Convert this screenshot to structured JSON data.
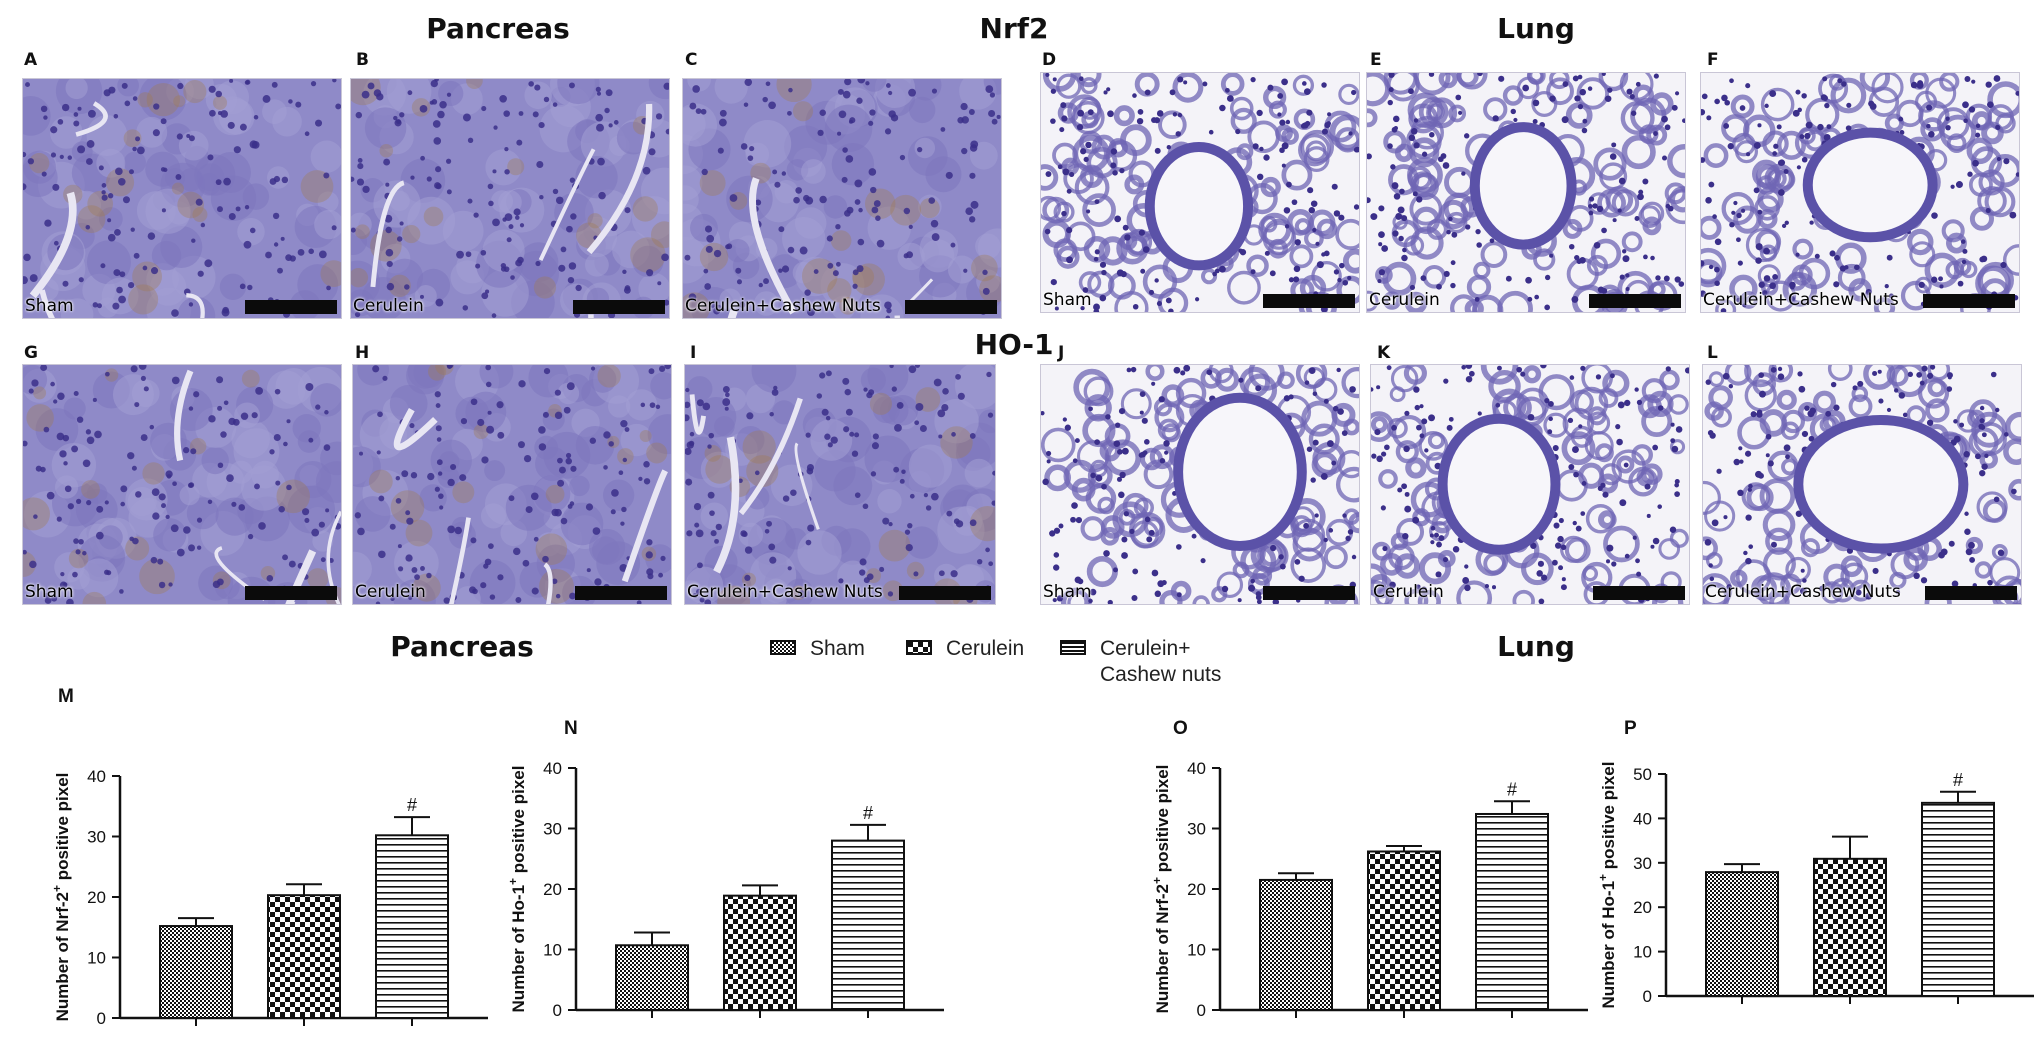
{
  "titles": {
    "pancreas_top": "Pancreas",
    "nrf2": "Nrf2",
    "lung_top": "Lung",
    "ho1": "HO-1",
    "pancreas_bottom": "Pancreas",
    "lung_bottom": "Lung"
  },
  "panels": [
    {
      "letter": "A",
      "tissue": "pancreas",
      "label": "Sham"
    },
    {
      "letter": "B",
      "tissue": "pancreas",
      "label": "Cerulein"
    },
    {
      "letter": "C",
      "tissue": "pancreas",
      "label": "Cerulein+Cashew Nuts"
    },
    {
      "letter": "D",
      "tissue": "lung",
      "label": "Sham"
    },
    {
      "letter": "E",
      "tissue": "lung",
      "label": "Cerulein"
    },
    {
      "letter": "F",
      "tissue": "lung",
      "label": "Cerulein+Cashew Nuts"
    },
    {
      "letter": "G",
      "tissue": "pancreas",
      "label": "Sham"
    },
    {
      "letter": "H",
      "tissue": "pancreas",
      "label": "Cerulein"
    },
    {
      "letter": "I",
      "tissue": "pancreas",
      "label": "Cerulein+Cashew Nuts"
    },
    {
      "letter": "J",
      "tissue": "lung",
      "label": "Sham"
    },
    {
      "letter": "K",
      "tissue": "lung",
      "label": "Cerulein"
    },
    {
      "letter": "L",
      "tissue": "lung",
      "label": "Cerulein+Cashew Nuts"
    }
  ],
  "legend": {
    "items": [
      {
        "label": "Sham",
        "pattern": "dense-check"
      },
      {
        "label": "Cerulein",
        "pattern": "checkerboard"
      },
      {
        "label": "Cerulein+\nCashew nuts",
        "pattern": "horizontal-lines"
      }
    ]
  },
  "colors": {
    "stain_blue": "#7a72c0",
    "nucleus": "#3b2f8a",
    "brown_stain": "#a07a50",
    "bar_outline": "#111111"
  },
  "chart_data": [
    {
      "panel": "M",
      "type": "bar",
      "categories": [
        "Sham",
        "Cerulein",
        "Cerulein+Cashew nuts"
      ],
      "values": [
        15.2,
        20.3,
        30.2
      ],
      "errors": [
        1.3,
        1.8,
        3.0
      ],
      "significance": [
        "",
        "",
        "#"
      ],
      "ylabel": "Number of Nrf-2+ positive pixel",
      "ylabel_parts": [
        "Number of Nrf-2",
        "+",
        " positive pixel"
      ],
      "ylim": [
        0,
        40
      ],
      "yticks": [
        0,
        10,
        20,
        30,
        40
      ]
    },
    {
      "panel": "N",
      "type": "bar",
      "categories": [
        "Sham",
        "Cerulein",
        "Cerulein+Cashew nuts"
      ],
      "values": [
        10.7,
        18.9,
        28.0
      ],
      "errors": [
        2.1,
        1.7,
        2.6
      ],
      "significance": [
        "",
        "",
        "#"
      ],
      "ylabel": "Number of Ho-1+ positive pixel",
      "ylabel_parts": [
        "Number of Ho-1",
        "+",
        " positive pixel"
      ],
      "ylim": [
        0,
        40
      ],
      "yticks": [
        0,
        10,
        20,
        30,
        40
      ]
    },
    {
      "panel": "O",
      "type": "bar",
      "categories": [
        "Sham",
        "Cerulein",
        "Cerulein+Cashew nuts"
      ],
      "values": [
        21.5,
        26.2,
        32.4
      ],
      "errors": [
        1.1,
        0.9,
        2.1
      ],
      "significance": [
        "",
        "",
        "#"
      ],
      "ylabel": "Number of Nrf-2+ positive pixel",
      "ylabel_parts": [
        "Number of Nrf-2",
        "+",
        " positive pixel"
      ],
      "ylim": [
        0,
        40
      ],
      "yticks": [
        0,
        10,
        20,
        30,
        40
      ]
    },
    {
      "panel": "P",
      "type": "bar",
      "categories": [
        "Sham",
        "Cerulein",
        "Cerulein+Cashew nuts"
      ],
      "values": [
        27.9,
        30.9,
        43.5
      ],
      "errors": [
        1.8,
        5.0,
        2.5
      ],
      "significance": [
        "",
        "",
        "#"
      ],
      "ylabel": "Number of Ho-1+ positive pixel",
      "ylabel_parts": [
        "Number of Ho-1",
        "+",
        " positive pixel"
      ],
      "ylim": [
        0,
        50
      ],
      "yticks": [
        0,
        10,
        20,
        30,
        40,
        50
      ]
    }
  ]
}
